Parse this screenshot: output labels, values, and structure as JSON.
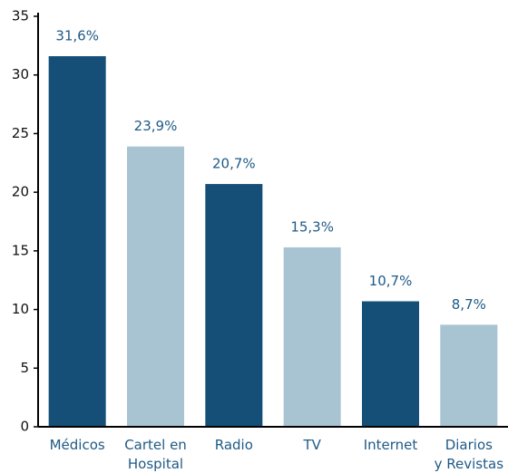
{
  "chart_data": {
    "type": "bar",
    "categories": [
      "Médicos",
      "Cartel en\nHospital",
      "Radio",
      "TV",
      "Internet",
      "Diarios\ny Revistas"
    ],
    "values": [
      31.6,
      23.9,
      20.7,
      15.3,
      10.7,
      8.7
    ],
    "value_labels": [
      "31,6%",
      "23,9%",
      "20,7%",
      "15,3%",
      "10,7%",
      "8,7%"
    ],
    "colors": [
      "#154f78",
      "#a8c4d2",
      "#154f78",
      "#a8c4d2",
      "#154f78",
      "#a8c4d2"
    ],
    "ylim": [
      0,
      35
    ],
    "yticks": [
      0,
      5,
      10,
      15,
      20,
      25,
      30,
      35
    ],
    "grid": false
  }
}
